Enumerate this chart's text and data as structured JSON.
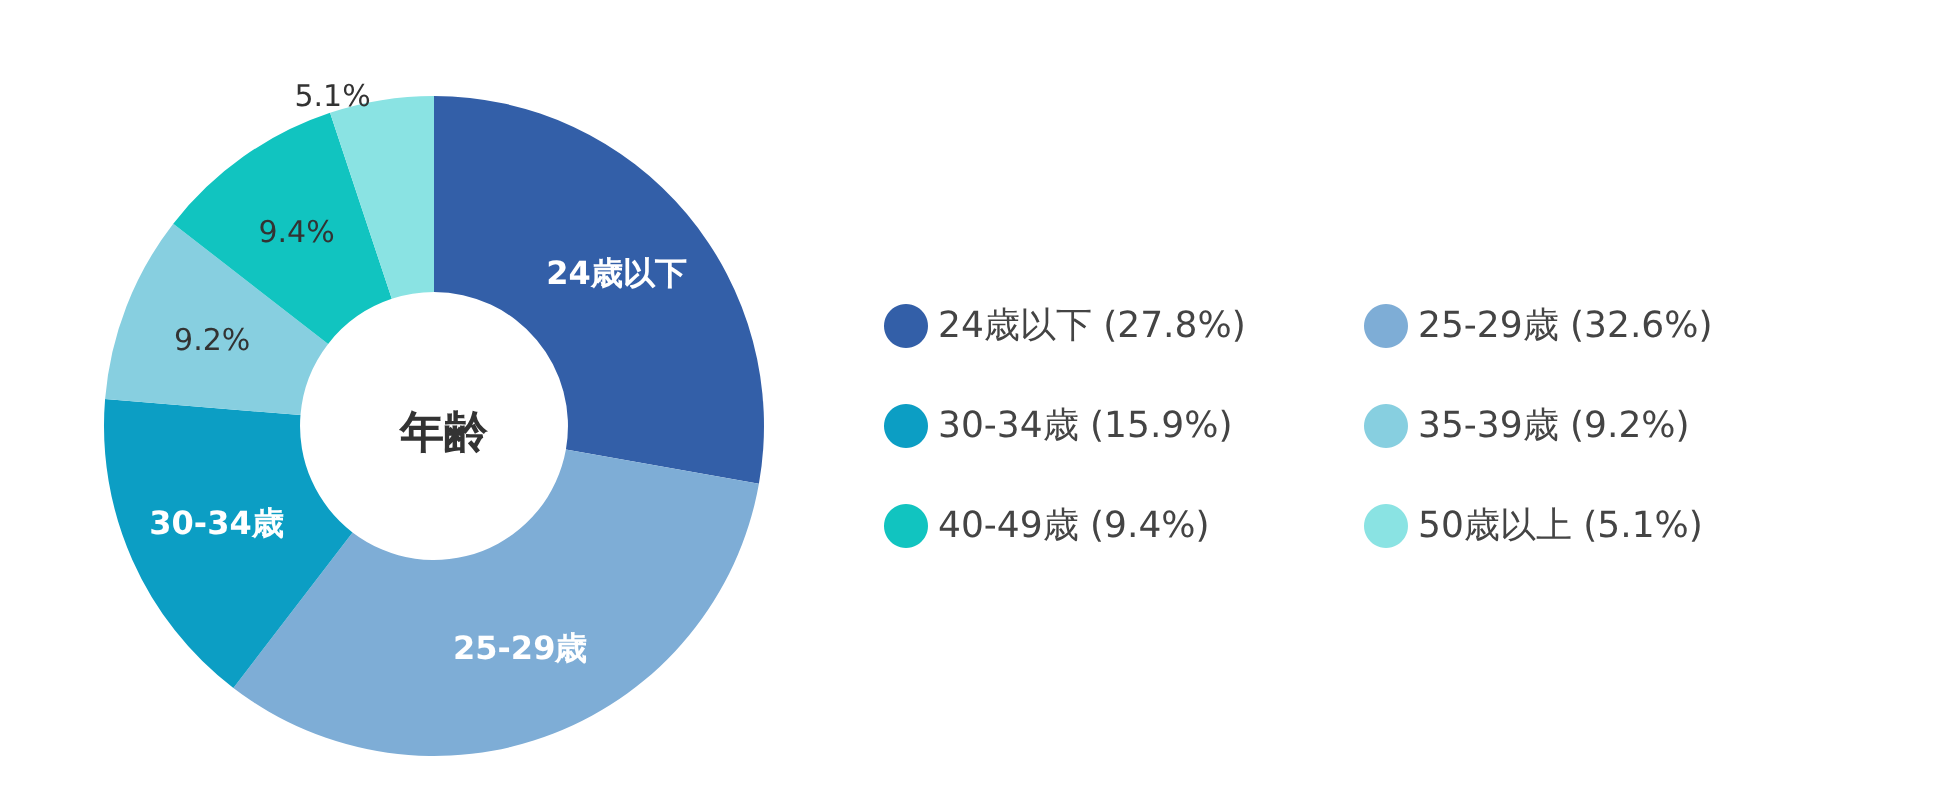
{
  "chart_data": {
    "type": "donut",
    "title": "年齢",
    "categories": [
      "24歳以下 (27.8%)",
      "25-29歳 (32.6%)",
      "30-34歳 (15.9%)",
      "35-39歳 (9.2%)",
      "40-49歳 (9.4%)",
      "50歳以上 (5.1%)"
    ],
    "values": [
      27.8,
      32.6,
      15.9,
      9.2,
      9.4,
      5.1
    ],
    "colors": [
      "#335fa8",
      "#7eadd6",
      "#0c9ec4",
      "#87cfe0",
      "#11c4c0",
      "#8ae3e3"
    ],
    "value_labels": [
      null,
      null,
      null,
      "9.2%",
      "9.4%",
      "5.1%"
    ],
    "annotations": [
      "24歳以下",
      "25-29歳",
      "30-34歳"
    ],
    "legend": "right"
  }
}
